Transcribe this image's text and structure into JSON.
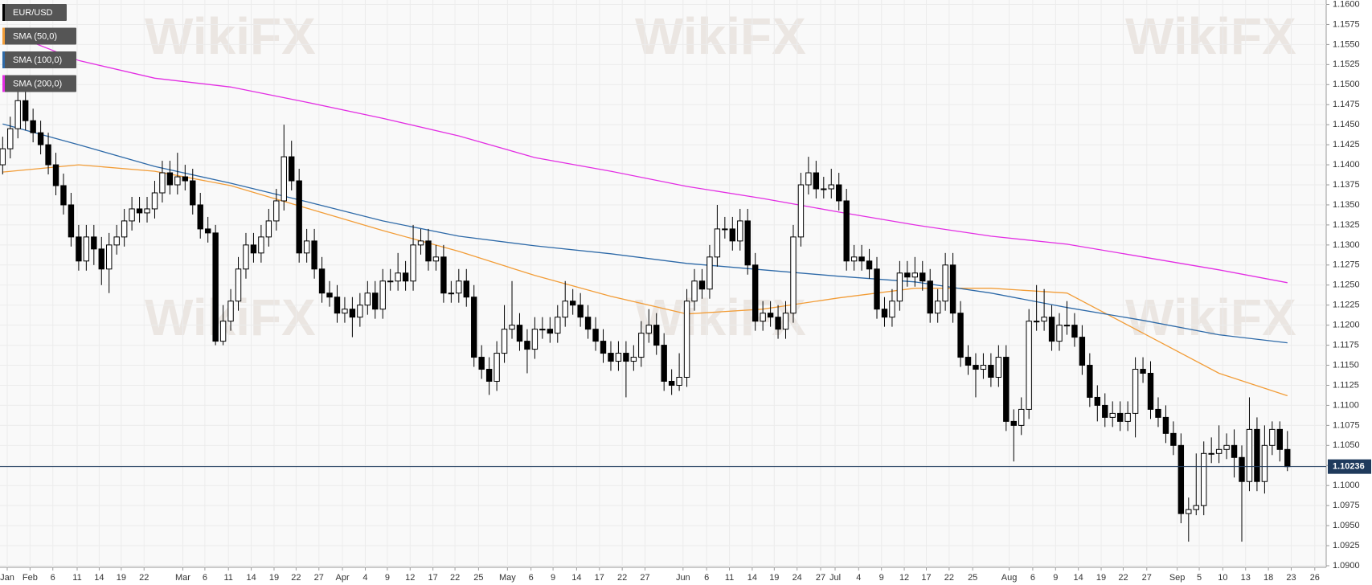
{
  "chart_data": {
    "type": "candlestick",
    "watermark": "WikiFX",
    "series": [
      {
        "name": "EUR/USD",
        "color": "#000000"
      },
      {
        "name": "SMA (50,0)",
        "color": "#f29d38"
      },
      {
        "name": "SMA (100,0)",
        "color": "#2e6aa8"
      },
      {
        "name": "SMA (200,0)",
        "color": "#e32ee3"
      }
    ],
    "open": [
      1.14,
      1.142,
      1.1445,
      1.148,
      1.1455,
      1.144,
      1.1425,
      1.14,
      1.1374,
      1.135,
      1.131,
      1.128,
      1.131,
      1.1295,
      1.127,
      1.13,
      1.131,
      1.133,
      1.1345,
      1.134,
      1.1345,
      1.1365,
      1.139,
      1.1375,
      1.1385,
      1.138,
      1.135,
      1.132,
      1.1315,
      1.118,
      1.1205,
      1.123,
      1.127,
      1.13,
      1.129,
      1.131,
      1.133,
      1.1355,
      1.141,
      1.138,
      1.129,
      1.1305,
      1.127,
      1.124,
      1.1235,
      1.1215,
      1.122,
      1.121,
      1.1225,
      1.124,
      1.122,
      1.1255,
      1.1255,
      1.1265,
      1.1255,
      1.13,
      1.1305,
      1.128,
      1.1285,
      1.124,
      1.124,
      1.1255,
      1.1235,
      1.116,
      1.1145,
      1.113,
      1.1165,
      1.1195,
      1.12,
      1.118,
      1.117,
      1.1195,
      1.1195,
      1.119,
      1.121,
      1.123,
      1.1225,
      1.121,
      1.1195,
      1.118,
      1.1165,
      1.1155,
      1.1165,
      1.1155,
      1.116,
      1.119,
      1.12,
      1.1175,
      1.113,
      1.1125,
      1.1135,
      1.123,
      1.1255,
      1.1245,
      1.1285,
      1.132,
      1.132,
      1.1305,
      1.133,
      1.1275,
      1.1205,
      1.1215,
      1.121,
      1.1195,
      1.1215,
      1.131,
      1.1375,
      1.139,
      1.137,
      1.137,
      1.1375,
      1.1355,
      1.128,
      1.1285,
      1.128,
      1.127,
      1.122,
      1.121,
      1.123,
      1.1265,
      1.126,
      1.1265,
      1.1255,
      1.1215,
      1.123,
      1.1275,
      1.1215,
      1.116,
      1.115,
      1.1145,
      1.115,
      1.1135,
      1.116,
      1.108,
      1.1075,
      1.1095,
      1.1205,
      1.1205,
      1.121,
      1.118,
      1.12,
      1.12,
      1.1185,
      1.115,
      1.111,
      1.11,
      1.1085,
      1.109,
      1.108,
      1.109,
      1.1145,
      1.114,
      1.1095,
      1.1085,
      1.1065,
      1.105,
      1.0965,
      1.097,
      1.0975,
      1.104,
      1.104,
      1.1045,
      1.105,
      1.1035,
      1.1005,
      1.107,
      1.1005,
      1.105,
      1.107,
      1.1045
    ],
    "high": [
      1.1435,
      1.146,
      1.15,
      1.1495,
      1.147,
      1.1455,
      1.144,
      1.1415,
      1.1389,
      1.1365,
      1.1325,
      1.1325,
      1.1325,
      1.131,
      1.1315,
      1.1325,
      1.1345,
      1.136,
      1.136,
      1.136,
      1.138,
      1.1405,
      1.1405,
      1.1415,
      1.14,
      1.1395,
      1.1365,
      1.1335,
      1.1325,
      1.1225,
      1.1245,
      1.1285,
      1.1315,
      1.1315,
      1.1325,
      1.1345,
      1.137,
      1.145,
      1.143,
      1.1395,
      1.132,
      1.132,
      1.1285,
      1.1255,
      1.125,
      1.1235,
      1.1235,
      1.124,
      1.1255,
      1.1255,
      1.127,
      1.127,
      1.129,
      1.128,
      1.1325,
      1.132,
      1.132,
      1.13,
      1.13,
      1.1255,
      1.127,
      1.127,
      1.125,
      1.1175,
      1.116,
      1.118,
      1.1225,
      1.1255,
      1.1215,
      1.1195,
      1.121,
      1.121,
      1.121,
      1.1225,
      1.1255,
      1.1245,
      1.124,
      1.1225,
      1.121,
      1.1195,
      1.118,
      1.118,
      1.118,
      1.1175,
      1.1205,
      1.122,
      1.1215,
      1.119,
      1.1145,
      1.1165,
      1.1245,
      1.127,
      1.127,
      1.13,
      1.135,
      1.1335,
      1.1335,
      1.1345,
      1.1345,
      1.129,
      1.123,
      1.123,
      1.1225,
      1.123,
      1.1325,
      1.139,
      1.141,
      1.1405,
      1.1385,
      1.1395,
      1.139,
      1.137,
      1.13,
      1.13,
      1.1295,
      1.1285,
      1.1235,
      1.1245,
      1.128,
      1.128,
      1.1285,
      1.128,
      1.127,
      1.1245,
      1.129,
      1.129,
      1.123,
      1.1175,
      1.1165,
      1.1165,
      1.1165,
      1.1175,
      1.1175,
      1.1095,
      1.111,
      1.122,
      1.125,
      1.1245,
      1.1225,
      1.1215,
      1.123,
      1.1215,
      1.12,
      1.1165,
      1.1125,
      1.1115,
      1.1105,
      1.1105,
      1.1105,
      1.116,
      1.116,
      1.1155,
      1.111,
      1.11,
      1.108,
      1.1065,
      1.0985,
      1.104,
      1.1055,
      1.106,
      1.1075,
      1.1065,
      1.107,
      1.105,
      1.111,
      1.1085,
      1.1075,
      1.108,
      1.108,
      1.1068
    ],
    "low": [
      1.1388,
      1.1408,
      1.1433,
      1.1443,
      1.1428,
      1.1413,
      1.1388,
      1.1362,
      1.1338,
      1.1298,
      1.1268,
      1.1268,
      1.1275,
      1.125,
      1.124,
      1.1288,
      1.1298,
      1.1318,
      1.1328,
      1.1328,
      1.1333,
      1.1353,
      1.1363,
      1.1363,
      1.1368,
      1.1338,
      1.1308,
      1.1303,
      1.1175,
      1.1175,
      1.1193,
      1.1218,
      1.1258,
      1.1278,
      1.1278,
      1.1298,
      1.1318,
      1.1343,
      1.1368,
      1.1278,
      1.1278,
      1.1258,
      1.1228,
      1.1223,
      1.1203,
      1.1203,
      1.1185,
      1.1198,
      1.1213,
      1.1208,
      1.1208,
      1.1243,
      1.1243,
      1.1243,
      1.1243,
      1.1288,
      1.1268,
      1.1268,
      1.1228,
      1.1228,
      1.1228,
      1.1223,
      1.1148,
      1.1133,
      1.1113,
      1.1118,
      1.1153,
      1.1183,
      1.1168,
      1.114,
      1.1158,
      1.1183,
      1.1178,
      1.1178,
      1.1198,
      1.1213,
      1.1198,
      1.1183,
      1.1168,
      1.1153,
      1.1143,
      1.1143,
      1.111,
      1.1143,
      1.1148,
      1.1178,
      1.1163,
      1.1118,
      1.1113,
      1.1118,
      1.1123,
      1.1218,
      1.1233,
      1.1233,
      1.1273,
      1.1308,
      1.1293,
      1.1293,
      1.1263,
      1.1193,
      1.1193,
      1.1198,
      1.1183,
      1.1183,
      1.1203,
      1.1298,
      1.1363,
      1.1358,
      1.1358,
      1.1358,
      1.1343,
      1.1268,
      1.1268,
      1.1268,
      1.1258,
      1.1208,
      1.1198,
      1.1198,
      1.1218,
      1.1248,
      1.1248,
      1.1243,
      1.1203,
      1.1203,
      1.1218,
      1.1203,
      1.1148,
      1.1138,
      1.111,
      1.1133,
      1.1123,
      1.1123,
      1.1068,
      1.103,
      1.1063,
      1.1083,
      1.1193,
      1.1193,
      1.1168,
      1.1168,
      1.1188,
      1.1173,
      1.1138,
      1.1098,
      1.108,
      1.1073,
      1.1073,
      1.1068,
      1.1068,
      1.106,
      1.1128,
      1.1083,
      1.1073,
      1.1053,
      1.1038,
      1.0953,
      1.093,
      1.0963,
      1.0963,
      1.1028,
      1.1028,
      1.1033,
      1.101,
      1.093,
      1.0993,
      1.0993,
      1.099,
      1.1038,
      1.103,
      1.1018
    ],
    "close": [
      1.142,
      1.1445,
      1.148,
      1.1455,
      1.144,
      1.1425,
      1.14,
      1.1374,
      1.135,
      1.131,
      1.128,
      1.131,
      1.1295,
      1.127,
      1.13,
      1.131,
      1.133,
      1.1345,
      1.134,
      1.1345,
      1.1365,
      1.139,
      1.1375,
      1.1385,
      1.138,
      1.135,
      1.132,
      1.1315,
      1.118,
      1.1205,
      1.123,
      1.127,
      1.13,
      1.129,
      1.131,
      1.133,
      1.1355,
      1.141,
      1.138,
      1.129,
      1.1305,
      1.127,
      1.124,
      1.1235,
      1.1215,
      1.122,
      1.121,
      1.1225,
      1.124,
      1.122,
      1.1255,
      1.1255,
      1.1265,
      1.1255,
      1.13,
      1.1305,
      1.128,
      1.1285,
      1.124,
      1.124,
      1.1255,
      1.1235,
      1.116,
      1.1145,
      1.113,
      1.1165,
      1.1195,
      1.12,
      1.118,
      1.117,
      1.1195,
      1.1195,
      1.119,
      1.121,
      1.123,
      1.1225,
      1.121,
      1.1195,
      1.118,
      1.1165,
      1.1155,
      1.1165,
      1.1155,
      1.116,
      1.119,
      1.12,
      1.1175,
      1.113,
      1.1125,
      1.1135,
      1.123,
      1.1255,
      1.1245,
      1.1285,
      1.132,
      1.132,
      1.1305,
      1.133,
      1.1275,
      1.1205,
      1.1215,
      1.121,
      1.1195,
      1.1215,
      1.131,
      1.1375,
      1.139,
      1.137,
      1.137,
      1.1375,
      1.1355,
      1.128,
      1.1285,
      1.128,
      1.127,
      1.122,
      1.121,
      1.123,
      1.1265,
      1.126,
      1.1265,
      1.1255,
      1.1215,
      1.123,
      1.1275,
      1.1215,
      1.116,
      1.115,
      1.1145,
      1.115,
      1.1135,
      1.116,
      1.108,
      1.1075,
      1.1095,
      1.1205,
      1.1205,
      1.121,
      1.118,
      1.12,
      1.12,
      1.1185,
      1.115,
      1.111,
      1.11,
      1.1085,
      1.109,
      1.108,
      1.109,
      1.1145,
      1.114,
      1.1095,
      1.1085,
      1.1065,
      1.105,
      1.0965,
      1.097,
      1.0975,
      1.104,
      1.104,
      1.1045,
      1.105,
      1.1035,
      1.1005,
      1.107,
      1.1005,
      1.105,
      1.107,
      1.1045,
      1.10236
    ],
    "sma_x": [
      0,
      10,
      20,
      30,
      40,
      50,
      60,
      70,
      80,
      90,
      100,
      110,
      120,
      130,
      140,
      150,
      160,
      169
    ],
    "sma": [
      [
        1.1391,
        1.14,
        1.1392,
        1.1374,
        1.1346,
        1.1318,
        1.1292,
        1.1262,
        1.1236,
        1.1214,
        1.122,
        1.1234,
        1.1246,
        1.1246,
        1.124,
        1.119,
        1.114,
        1.1112
      ],
      [
        1.1451,
        1.1425,
        1.1398,
        1.1377,
        1.1354,
        1.133,
        1.1311,
        1.1299,
        1.1289,
        1.1277,
        1.1269,
        1.1261,
        1.1254,
        1.124,
        1.1222,
        1.1206,
        1.1188,
        1.1178
      ],
      [
        1.1567,
        1.153,
        1.1508,
        1.1497,
        1.1478,
        1.1458,
        1.1436,
        1.1409,
        1.1392,
        1.1373,
        1.1358,
        1.1341,
        1.1325,
        1.1311,
        1.1301,
        1.1285,
        1.1269,
        1.1253
      ]
    ],
    "xlim": [
      -0.35,
      174.1
    ],
    "xticks": [
      {
        "value": 0.6,
        "label": "Jan"
      },
      {
        "value": 3.6,
        "label": "Feb"
      },
      {
        "value": 6.6,
        "label": "6"
      },
      {
        "value": 9.8,
        "label": "11"
      },
      {
        "value": 12.7,
        "label": "14"
      },
      {
        "value": 15.6,
        "label": "19"
      },
      {
        "value": 18.6,
        "label": "22"
      },
      {
        "value": 23.7,
        "label": "Mar"
      },
      {
        "value": 26.6,
        "label": "6"
      },
      {
        "value": 29.7,
        "label": "11"
      },
      {
        "value": 32.7,
        "label": "14"
      },
      {
        "value": 35.7,
        "label": "19"
      },
      {
        "value": 38.6,
        "label": "22"
      },
      {
        "value": 41.6,
        "label": "27"
      },
      {
        "value": 44.7,
        "label": "Apr"
      },
      {
        "value": 47.7,
        "label": "4"
      },
      {
        "value": 50.6,
        "label": "9"
      },
      {
        "value": 53.6,
        "label": "12"
      },
      {
        "value": 56.6,
        "label": "17"
      },
      {
        "value": 59.5,
        "label": "22"
      },
      {
        "value": 62.6,
        "label": "25"
      },
      {
        "value": 66.4,
        "label": "May"
      },
      {
        "value": 69.5,
        "label": "6"
      },
      {
        "value": 72.4,
        "label": "9"
      },
      {
        "value": 75.5,
        "label": "14"
      },
      {
        "value": 78.5,
        "label": "17"
      },
      {
        "value": 81.5,
        "label": "22"
      },
      {
        "value": 84.5,
        "label": "27"
      },
      {
        "value": 89.5,
        "label": "Jun"
      },
      {
        "value": 92.6,
        "label": "6"
      },
      {
        "value": 95.6,
        "label": "11"
      },
      {
        "value": 98.6,
        "label": "14"
      },
      {
        "value": 101.5,
        "label": "19"
      },
      {
        "value": 104.5,
        "label": "24"
      },
      {
        "value": 107.6,
        "label": "27"
      },
      {
        "value": 109.5,
        "label": "Jul"
      },
      {
        "value": 112.6,
        "label": "4"
      },
      {
        "value": 115.6,
        "label": "9"
      },
      {
        "value": 118.6,
        "label": "12"
      },
      {
        "value": 121.5,
        "label": "17"
      },
      {
        "value": 124.5,
        "label": "22"
      },
      {
        "value": 127.6,
        "label": "25"
      },
      {
        "value": 132.4,
        "label": "Aug"
      },
      {
        "value": 135.5,
        "label": "6"
      },
      {
        "value": 138.5,
        "label": "9"
      },
      {
        "value": 141.5,
        "label": "14"
      },
      {
        "value": 144.5,
        "label": "19"
      },
      {
        "value": 147.4,
        "label": "22"
      },
      {
        "value": 150.5,
        "label": "27"
      },
      {
        "value": 154.5,
        "label": "Sep"
      },
      {
        "value": 157.4,
        "label": "5"
      },
      {
        "value": 160.5,
        "label": "10"
      },
      {
        "value": 163.5,
        "label": "13"
      },
      {
        "value": 166.5,
        "label": "18"
      },
      {
        "value": 169.5,
        "label": "23"
      },
      {
        "value": 172.6,
        "label": "26"
      }
    ],
    "ylim": [
      1.09,
      1.16
    ],
    "yticks": [
      {
        "value": 1.09,
        "label": "1.0900"
      },
      1.0925,
      {
        "value": 1.095,
        "label": "1.0950"
      },
      1.0975,
      {
        "value": 1.1,
        "label": "1.1000"
      },
      1.1025,
      {
        "value": 1.105,
        "label": "1.1050"
      },
      1.1075,
      {
        "value": 1.11,
        "label": "1.1100"
      },
      1.1125,
      {
        "value": 1.115,
        "label": "1.1150"
      },
      1.1175,
      {
        "value": 1.12,
        "label": "1.1200"
      },
      1.1225,
      {
        "value": 1.125,
        "label": "1.1250"
      },
      1.1275,
      {
        "value": 1.13,
        "label": "1.1300"
      },
      1.1325,
      {
        "value": 1.135,
        "label": "1.1350"
      },
      1.1375,
      {
        "value": 1.14,
        "label": "1.1400"
      },
      1.1425,
      {
        "value": 1.145,
        "label": "1.1450"
      },
      1.1475,
      {
        "value": 1.15,
        "label": "1.1500"
      },
      1.1525,
      {
        "value": 1.155,
        "label": "1.1550"
      },
      1.1575,
      {
        "value": 1.16,
        "label": "1.1600"
      }
    ],
    "grid": true
  }
}
